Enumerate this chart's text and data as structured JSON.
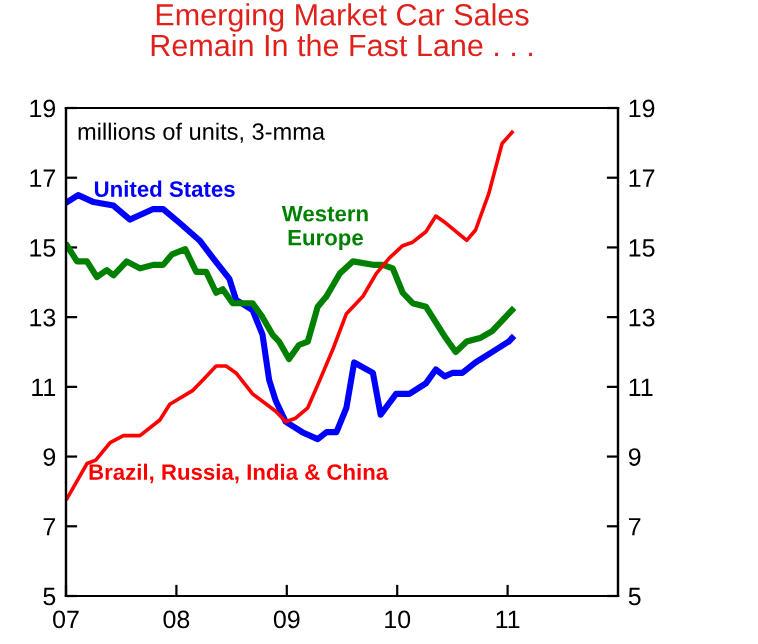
{
  "chart_data": {
    "type": "line",
    "title": "Emerging Market Car Sales\nRemain In the Fast Lane . . .",
    "annotations": [
      "millions of units, 3-mma"
    ],
    "xlim": [
      2007,
      2012
    ],
    "xticks": [
      {
        "value": 2007,
        "label": "07"
      },
      {
        "value": 2008,
        "label": "08"
      },
      {
        "value": 2009,
        "label": "09"
      },
      {
        "value": 2010,
        "label": "10"
      },
      {
        "value": 2011,
        "label": "11"
      }
    ],
    "ylim": [
      5,
      19
    ],
    "yticks": [
      5,
      7,
      9,
      11,
      13,
      15,
      17,
      19
    ],
    "y2lim": [
      5,
      19
    ],
    "y2ticks": [
      5,
      7,
      9,
      11,
      13,
      15,
      17,
      19
    ],
    "grid": false,
    "legend": false,
    "marker": "none",
    "line_style": "solid",
    "series": [
      {
        "name": "United States",
        "color": "#0000ff",
        "x": [
          2007.01,
          2007.11,
          2007.25,
          2007.43,
          2007.58,
          2007.79,
          2007.88,
          2008.03,
          2008.21,
          2008.33,
          2008.48,
          2008.54,
          2008.69,
          2008.78,
          2008.84,
          2008.9,
          2008.99,
          2009.14,
          2009.28,
          2009.36,
          2009.45,
          2009.54,
          2009.61,
          2009.78,
          2009.85,
          2009.99,
          2010.11,
          2010.26,
          2010.35,
          2010.43,
          2010.5,
          2010.59,
          2010.71,
          2010.86,
          2011.01,
          2011.04
        ],
        "values": [
          16.3,
          16.5,
          16.3,
          16.2,
          15.8,
          16.1,
          16.1,
          15.7,
          15.2,
          14.7,
          14.1,
          13.5,
          13.2,
          12.5,
          11.2,
          10.6,
          10.0,
          9.7,
          9.5,
          9.7,
          9.7,
          10.4,
          11.7,
          11.4,
          10.2,
          10.8,
          10.8,
          11.1,
          11.5,
          11.3,
          11.4,
          11.4,
          11.7,
          12.0,
          12.3,
          12.4
        ]
      },
      {
        "name": "Western\nEurope",
        "color": "#008000",
        "x": [
          2007.01,
          2007.1,
          2007.19,
          2007.28,
          2007.37,
          2007.43,
          2007.55,
          2007.67,
          2007.79,
          2007.88,
          2007.96,
          2008.08,
          2008.18,
          2008.27,
          2008.36,
          2008.42,
          2008.51,
          2008.6,
          2008.69,
          2008.78,
          2008.87,
          2008.93,
          2009.02,
          2009.11,
          2009.19,
          2009.28,
          2009.36,
          2009.48,
          2009.6,
          2009.78,
          2009.87,
          2009.96,
          2010.05,
          2010.14,
          2010.26,
          2010.44,
          2010.53,
          2010.63,
          2010.75,
          2010.86,
          2010.98,
          2011.04
        ],
        "values": [
          15.05,
          14.6,
          14.6,
          14.15,
          14.35,
          14.2,
          14.6,
          14.4,
          14.5,
          14.5,
          14.8,
          14.95,
          14.3,
          14.3,
          13.7,
          13.8,
          13.4,
          13.4,
          13.4,
          13.0,
          12.5,
          12.3,
          11.8,
          12.2,
          12.3,
          13.3,
          13.6,
          14.25,
          14.6,
          14.5,
          14.5,
          14.4,
          13.7,
          13.4,
          13.3,
          12.4,
          12.0,
          12.3,
          12.4,
          12.6,
          13.0,
          13.2
        ]
      },
      {
        "name": "Brazil, Russia, India & China",
        "color": "#ff0000",
        "x": [
          2007.01,
          2007.19,
          2007.27,
          2007.4,
          2007.52,
          2007.67,
          2007.85,
          2007.94,
          2008.15,
          2008.24,
          2008.36,
          2008.45,
          2008.54,
          2008.69,
          2008.9,
          2008.99,
          2009.08,
          2009.19,
          2009.3,
          2009.42,
          2009.54,
          2009.69,
          2009.81,
          2009.93,
          2010.05,
          2010.14,
          2010.26,
          2010.35,
          2010.44,
          2010.63,
          2010.71,
          2010.83,
          2010.95,
          2011.04
        ],
        "values": [
          7.8,
          8.8,
          8.9,
          9.4,
          9.6,
          9.6,
          10.05,
          10.5,
          10.9,
          11.2,
          11.6,
          11.6,
          11.4,
          10.8,
          10.3,
          10.0,
          10.1,
          10.4,
          11.2,
          12.1,
          13.1,
          13.6,
          14.25,
          14.7,
          15.05,
          15.15,
          15.45,
          15.9,
          15.7,
          15.2,
          15.5,
          16.55,
          17.98,
          18.3
        ]
      }
    ]
  }
}
